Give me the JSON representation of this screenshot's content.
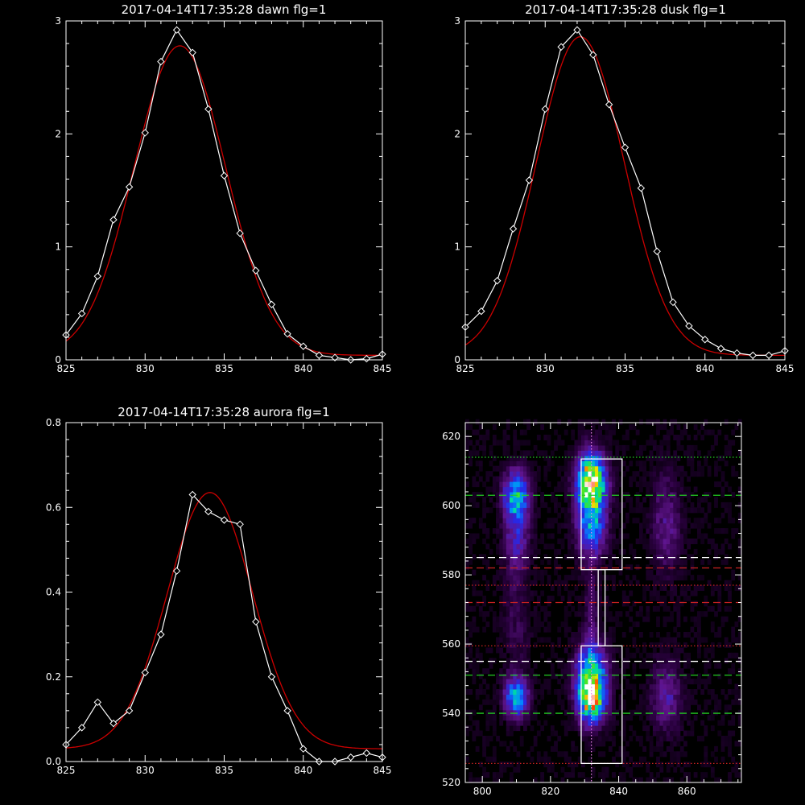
{
  "chart_data": [
    {
      "type": "line",
      "title": "2017-04-14T17:35:28 dawn flg=1",
      "xlim": [
        825,
        845
      ],
      "ylim": [
        0,
        3
      ],
      "xticks": [
        825,
        830,
        835,
        840,
        845
      ],
      "yticks": [
        0,
        1,
        2,
        3
      ],
      "series": [
        {
          "role": "data",
          "color": "#ffffff",
          "marker": "diamond",
          "x": [
            825,
            826,
            827,
            828,
            829,
            830,
            831,
            832,
            833,
            834,
            835,
            836,
            837,
            838,
            839,
            840,
            841,
            842,
            843,
            844,
            845
          ],
          "y": [
            0.22,
            0.41,
            0.74,
            1.24,
            1.53,
            2.01,
            2.64,
            2.92,
            2.72,
            2.22,
            1.63,
            1.12,
            0.79,
            0.49,
            0.23,
            0.12,
            0.04,
            0.02,
            0.0,
            0.01,
            0.05
          ]
        },
        {
          "role": "fit",
          "color": "#cc0000",
          "gaussian": {
            "center": 832.2,
            "sigma": 2.9,
            "amplitude": 2.74,
            "offset": 0.04
          }
        }
      ]
    },
    {
      "type": "line",
      "title": "2017-04-14T17:35:28 dusk flg=1",
      "xlim": [
        825,
        845
      ],
      "ylim": [
        0,
        3
      ],
      "xticks": [
        825,
        830,
        835,
        840,
        845
      ],
      "yticks": [
        0,
        1,
        2,
        3
      ],
      "series": [
        {
          "role": "data",
          "color": "#ffffff",
          "marker": "diamond",
          "x": [
            825,
            826,
            827,
            828,
            829,
            830,
            831,
            832,
            833,
            834,
            835,
            836,
            837,
            838,
            839,
            840,
            841,
            842,
            843,
            844,
            845
          ],
          "y": [
            0.29,
            0.43,
            0.7,
            1.16,
            1.59,
            2.22,
            2.77,
            2.92,
            2.7,
            2.26,
            1.88,
            1.52,
            0.96,
            0.51,
            0.3,
            0.18,
            0.1,
            0.06,
            0.04,
            0.04,
            0.08
          ]
        },
        {
          "role": "fit",
          "color": "#cc0000",
          "gaussian": {
            "center": 832.2,
            "sigma": 2.75,
            "amplitude": 2.82,
            "offset": 0.04
          }
        }
      ]
    },
    {
      "type": "line",
      "title": "2017-04-14T17:35:28 aurora flg=1",
      "xlim": [
        825,
        845
      ],
      "ylim": [
        0,
        0.8
      ],
      "xticks": [
        825,
        830,
        835,
        840,
        845
      ],
      "yticks": [
        0.0,
        0.2,
        0.4,
        0.6,
        0.8
      ],
      "series": [
        {
          "role": "data",
          "color": "#ffffff",
          "marker": "diamond",
          "x": [
            825,
            826,
            827,
            828,
            829,
            830,
            831,
            832,
            833,
            834,
            835,
            836,
            837,
            838,
            839,
            840,
            841,
            842,
            843,
            844,
            845
          ],
          "y": [
            0.04,
            0.08,
            0.14,
            0.09,
            0.12,
            0.21,
            0.3,
            0.45,
            0.63,
            0.59,
            0.57,
            0.56,
            0.33,
            0.2,
            0.12,
            0.03,
            0.0,
            0.0,
            0.01,
            0.02,
            0.01
          ]
        },
        {
          "role": "fit",
          "color": "#cc0000",
          "gaussian": {
            "center": 834.1,
            "sigma": 2.7,
            "amplitude": 0.605,
            "offset": 0.03
          }
        }
      ]
    },
    {
      "type": "heatmap",
      "title": "",
      "xlim": [
        795,
        876
      ],
      "ylim": [
        520,
        624
      ],
      "xticks": [
        800,
        820,
        840,
        860
      ],
      "yticks": [
        520,
        540,
        560,
        580,
        600,
        620
      ],
      "blobs": [
        {
          "x": 832,
          "y": 607,
          "sx": 2.8,
          "sy": 5.5,
          "amp": 1.0
        },
        {
          "x": 832,
          "y": 594,
          "sx": 3.0,
          "sy": 6.0,
          "amp": 0.45
        },
        {
          "x": 832,
          "y": 545,
          "sx": 2.8,
          "sy": 5.0,
          "amp": 0.95
        },
        {
          "x": 832,
          "y": 554,
          "sx": 3.0,
          "sy": 5.0,
          "amp": 0.45
        },
        {
          "x": 810,
          "y": 603,
          "sx": 2.5,
          "sy": 5.0,
          "amp": 0.55
        },
        {
          "x": 810,
          "y": 545,
          "sx": 2.3,
          "sy": 4.0,
          "amp": 0.55
        },
        {
          "x": 810,
          "y": 590,
          "sx": 2.5,
          "sy": 8.0,
          "amp": 0.25
        },
        {
          "x": 854,
          "y": 595,
          "sx": 3.0,
          "sy": 10.0,
          "amp": 0.18
        },
        {
          "x": 854,
          "y": 545,
          "sx": 3.0,
          "sy": 7.0,
          "amp": 0.22
        },
        {
          "x": 832,
          "y": 570,
          "sx": 1.5,
          "sy": 10.0,
          "amp": 0.12
        },
        {
          "x": 810,
          "y": 565,
          "sx": 2.5,
          "sy": 8.0,
          "amp": 0.1
        }
      ],
      "boxes": [
        {
          "x0": 829,
          "x1": 841,
          "y0": 581.5,
          "y1": 613.5,
          "color": "#ffffff"
        },
        {
          "x0": 829,
          "x1": 841,
          "y0": 525.5,
          "y1": 559.5,
          "color": "#ffffff"
        },
        {
          "x0": 834,
          "x1": 836,
          "y0": 559.5,
          "y1": 581.5,
          "color": "#ffffff"
        }
      ],
      "hlines": [
        {
          "y": 614,
          "color": "#22cc22",
          "style": "dotted"
        },
        {
          "y": 603,
          "color": "#22cc22",
          "style": "dashed"
        },
        {
          "y": 585,
          "color": "#ffffff",
          "style": "dashed"
        },
        {
          "y": 582,
          "color": "#cc2222",
          "style": "dashed"
        },
        {
          "y": 577,
          "color": "#cc2222",
          "style": "dotted"
        },
        {
          "y": 572,
          "color": "#cc2222",
          "style": "dashed"
        },
        {
          "y": 559.5,
          "color": "#cc2222",
          "style": "dotted"
        },
        {
          "y": 555,
          "color": "#ffffff",
          "style": "dashed"
        },
        {
          "y": 551,
          "color": "#22cc22",
          "style": "dashed"
        },
        {
          "y": 540,
          "color": "#22cc22",
          "style": "dashed"
        },
        {
          "y": 525.5,
          "color": "#cc2222",
          "style": "dotted"
        }
      ],
      "vlines": [
        {
          "x": 832,
          "color": "#ee88ee",
          "style": "dotted"
        }
      ]
    }
  ]
}
